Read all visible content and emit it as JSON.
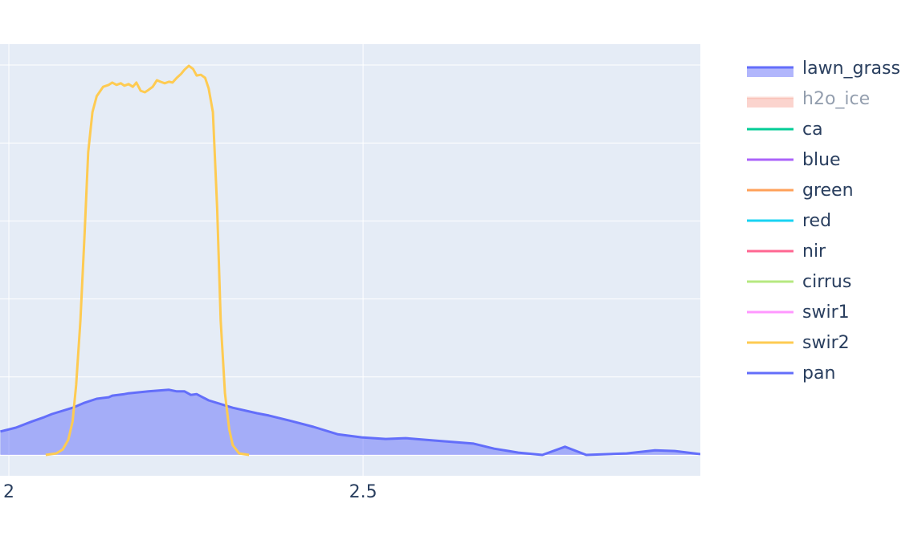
{
  "chart_data": {
    "type": "line",
    "xlim": [
      1.9875,
      2.976
    ],
    "xticks": [
      2,
      2.5
    ],
    "ylim": [
      -0.0535,
      1.0535
    ],
    "yticks": [
      0,
      0.2,
      0.4,
      0.6,
      0.8,
      1.0
    ],
    "grid": true,
    "legend": "right",
    "series": [
      {
        "name": "lawn_grass",
        "color": "#636efa",
        "fill": "tozeroy",
        "x": [
          1.988,
          2.01,
          2.033,
          2.05,
          2.061,
          2.09,
          2.107,
          2.124,
          2.141,
          2.146,
          2.163,
          2.169,
          2.197,
          2.226,
          2.237,
          2.248,
          2.257,
          2.265,
          2.282,
          2.316,
          2.35,
          2.367,
          2.396,
          2.43,
          2.464,
          2.498,
          2.532,
          2.56,
          2.6,
          2.656,
          2.685,
          2.719,
          2.753,
          2.785,
          2.815,
          2.872,
          2.912,
          2.94,
          2.976
        ],
        "values": [
          0.06,
          0.07,
          0.086,
          0.097,
          0.105,
          0.121,
          0.134,
          0.144,
          0.148,
          0.152,
          0.156,
          0.158,
          0.163,
          0.167,
          0.163,
          0.163,
          0.154,
          0.156,
          0.14,
          0.121,
          0.107,
          0.101,
          0.088,
          0.072,
          0.053,
          0.045,
          0.041,
          0.043,
          0.037,
          0.029,
          0.016,
          0.006,
          0,
          0.021,
          0,
          0.004,
          0.012,
          0.01,
          0.002
        ]
      },
      {
        "name": "h2o_ice",
        "color": "#EF553B",
        "fill": "tozeroy",
        "visible": "legendonly",
        "x": [],
        "values": []
      },
      {
        "name": "ca",
        "color": "#00cc96",
        "x": [],
        "values": []
      },
      {
        "name": "blue",
        "color": "#ab63fa",
        "x": [],
        "values": []
      },
      {
        "name": "green",
        "color": "#FFA15A",
        "x": [],
        "values": []
      },
      {
        "name": "red",
        "color": "#19d3f3",
        "x": [],
        "values": []
      },
      {
        "name": "nir",
        "color": "#FF6692",
        "x": [],
        "values": []
      },
      {
        "name": "cirrus",
        "color": "#B6E880",
        "x": [],
        "values": []
      },
      {
        "name": "swir1",
        "color": "#FF97FF",
        "x": [],
        "values": []
      },
      {
        "name": "swir2",
        "color": "#FECB52",
        "x": [
          2.052,
          2.067,
          2.076,
          2.084,
          2.09,
          2.095,
          2.101,
          2.107,
          2.112,
          2.118,
          2.124,
          2.133,
          2.141,
          2.146,
          2.152,
          2.158,
          2.163,
          2.169,
          2.175,
          2.18,
          2.186,
          2.192,
          2.197,
          2.203,
          2.209,
          2.214,
          2.22,
          2.226,
          2.231,
          2.237,
          2.243,
          2.248,
          2.254,
          2.26,
          2.265,
          2.271,
          2.277,
          2.282,
          2.288,
          2.294,
          2.299,
          2.305,
          2.311,
          2.316,
          2.325,
          2.339
        ],
        "values": [
          0,
          0.004,
          0.014,
          0.039,
          0.086,
          0.179,
          0.344,
          0.57,
          0.776,
          0.879,
          0.92,
          0.944,
          0.949,
          0.955,
          0.949,
          0.953,
          0.947,
          0.951,
          0.944,
          0.955,
          0.934,
          0.93,
          0.936,
          0.944,
          0.961,
          0.957,
          0.953,
          0.957,
          0.955,
          0.967,
          0.977,
          0.988,
          0.998,
          0.99,
          0.973,
          0.975,
          0.967,
          0.94,
          0.879,
          0.632,
          0.344,
          0.158,
          0.066,
          0.025,
          0.004,
          0
        ]
      },
      {
        "name": "pan",
        "color": "#636efa",
        "x": [],
        "values": []
      }
    ]
  }
}
